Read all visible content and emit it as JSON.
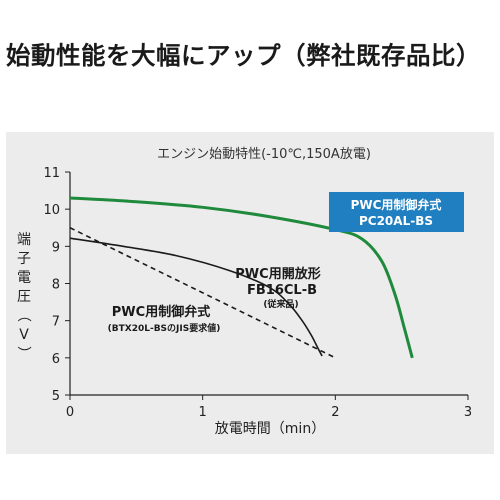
{
  "headline": "始動性能を大幅にアップ（弊社既存品比）",
  "chart_data": {
    "type": "line",
    "title": "エンジン始動特性(-10℃,150A放電)",
    "xlabel": "放電時間（min）",
    "ylabel": "端子電圧（V）",
    "xlim": [
      0,
      3
    ],
    "ylim": [
      5,
      11
    ],
    "x_ticks": [
      "0",
      "1",
      "2",
      "3"
    ],
    "y_ticks": [
      "5",
      "6",
      "7",
      "8",
      "9",
      "10",
      "11"
    ],
    "grid": false,
    "series": [
      {
        "name_lines": [
          "PWC用制御弁式",
          "PC20AL-BS"
        ],
        "color": "#1f8a3c",
        "style": "solid",
        "x": [
          0,
          0.5,
          1.0,
          1.5,
          2.0,
          2.2,
          2.35,
          2.45,
          2.52,
          2.58
        ],
        "y": [
          10.3,
          10.2,
          10.05,
          9.8,
          9.45,
          9.2,
          8.6,
          7.7,
          6.8,
          6.0
        ]
      },
      {
        "name_lines": [
          "PWC用開放形",
          "FB16CL-B",
          "(従来品)"
        ],
        "color": "#1a1a1a",
        "style": "solid",
        "x": [
          0,
          0.4,
          0.8,
          1.2,
          1.5,
          1.65,
          1.75,
          1.82,
          1.87,
          1.9
        ],
        "y": [
          9.22,
          9.0,
          8.75,
          8.35,
          7.9,
          7.45,
          7.0,
          6.6,
          6.25,
          6.05
        ]
      },
      {
        "name_lines": [
          "PWC用制御弁式",
          "(BTX20L-BSのJIS要求値)"
        ],
        "color": "#1a1a1a",
        "style": "dashed",
        "x": [
          0,
          2.0
        ],
        "y": [
          9.5,
          6.0
        ]
      }
    ]
  }
}
